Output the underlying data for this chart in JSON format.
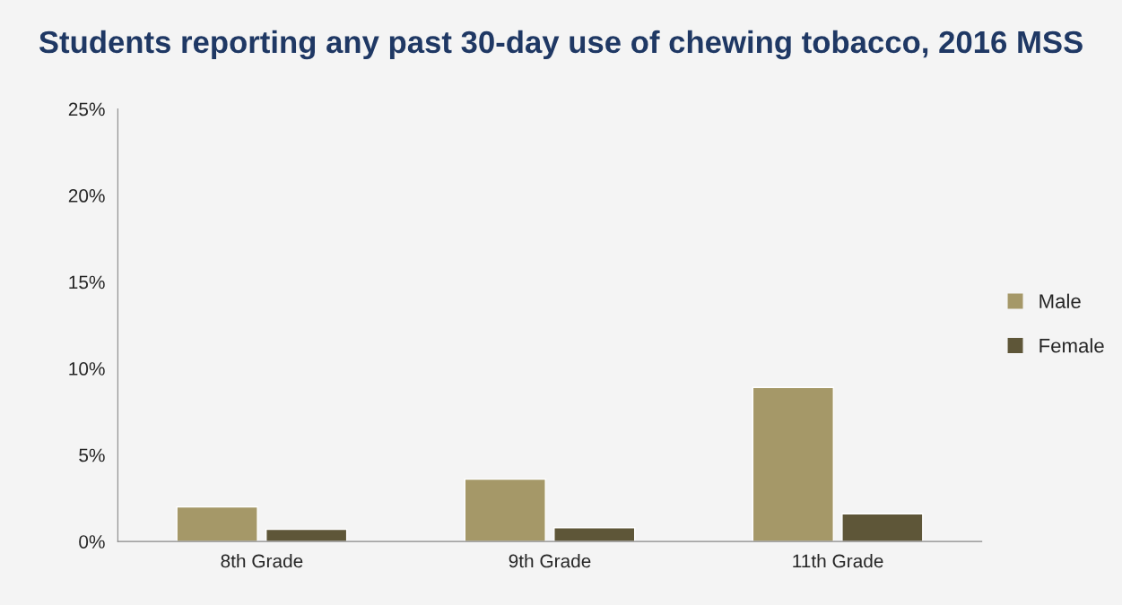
{
  "chart_data": {
    "type": "bar",
    "title": "Students reporting any past 30-day use of chewing tobacco, 2016 MSS",
    "categories": [
      "8th Grade",
      "9th Grade",
      "11th Grade"
    ],
    "series": [
      {
        "name": "Male",
        "color": "#a59868",
        "values": [
          2.0,
          3.6,
          8.9
        ]
      },
      {
        "name": "Female",
        "color": "#5e5638",
        "values": [
          0.7,
          0.8,
          1.6
        ]
      }
    ],
    "ylim": [
      0,
      25
    ],
    "yticks": [
      {
        "value": 0,
        "label": "0%"
      },
      {
        "value": 5,
        "label": "5%"
      },
      {
        "value": 10,
        "label": "10%"
      },
      {
        "value": 15,
        "label": "15%"
      },
      {
        "value": 20,
        "label": "20%"
      },
      {
        "value": 25,
        "label": "25%"
      }
    ],
    "grid": false,
    "legend": "right"
  }
}
